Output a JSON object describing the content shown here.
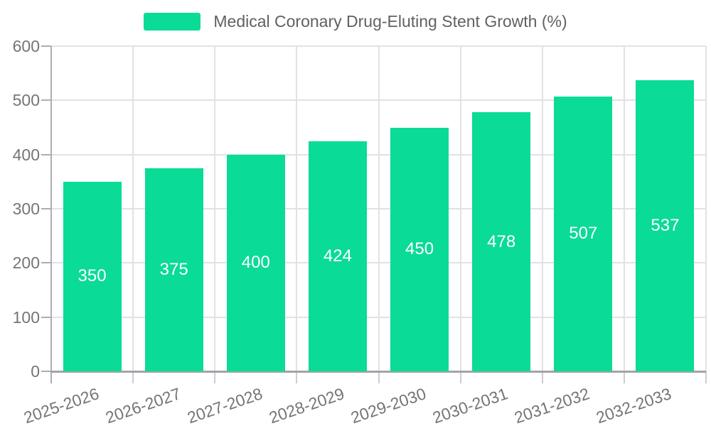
{
  "chart_data": {
    "type": "bar",
    "title": "Medical Coronary Drug-Eluting Stent Growth (%)",
    "legend": [
      "Medical Coronary Drug-Eluting Stent Growth (%)"
    ],
    "legend_position": "top-center",
    "categories": [
      "2025-2026",
      "2026-2027",
      "2027-2028",
      "2028-2029",
      "2029-2030",
      "2030-2031",
      "2031-2032",
      "2032-2033"
    ],
    "values": [
      350,
      375,
      400,
      424,
      450,
      478,
      507,
      537
    ],
    "xlabel": "",
    "ylabel": "",
    "ylim": [
      0,
      600
    ],
    "yticks": [
      0,
      100,
      200,
      300,
      400,
      500,
      600
    ],
    "grid": true,
    "x_label_rotation_deg": -19,
    "bar_label_position": "inside-center",
    "colors": {
      "bar": "#0adb96",
      "bar_label": "#ffffff",
      "axis_label": "#757575",
      "legend_text": "#616161",
      "gridline": "#e1e1e7",
      "axis_line": "#a3a3a9",
      "background": "#ffffff"
    }
  }
}
